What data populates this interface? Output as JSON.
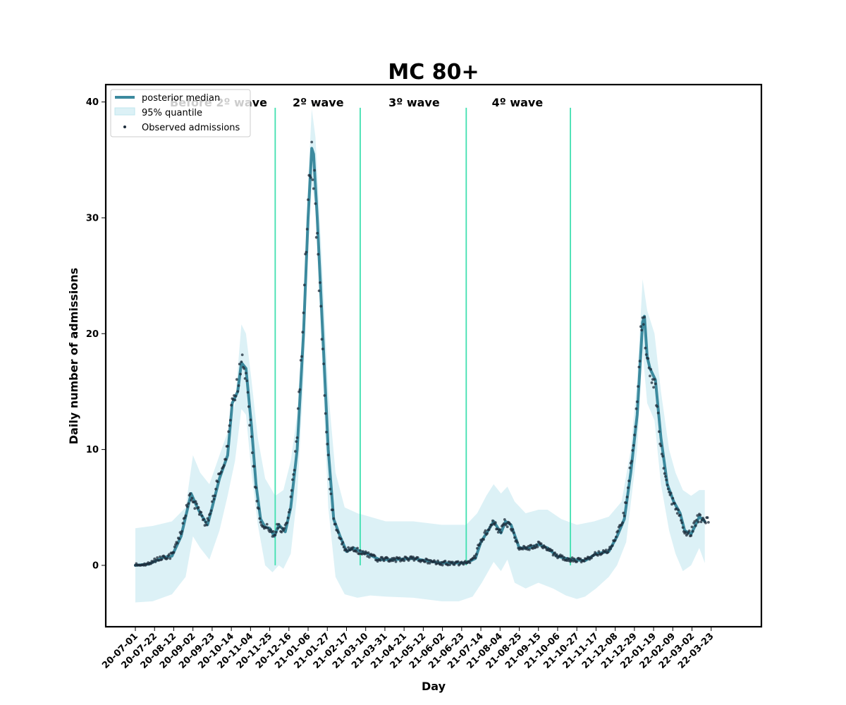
{
  "colors": {
    "median": "#3c8a9e",
    "band": "#bfe6ee",
    "observed": "#1c2b3a",
    "wave_line": "#40e0b0",
    "frame": "#000000"
  },
  "chart_data": {
    "type": "line",
    "title": "MC 80+",
    "xlabel": "Day",
    "ylabel": "Daily number of admissions",
    "x_tick_labels": [
      "20-07-01",
      "20-07-22",
      "20-08-12",
      "20-09-02",
      "20-09-23",
      "20-10-14",
      "20-11-04",
      "20-11-25",
      "20-12-16",
      "21-01-06",
      "21-01-27",
      "21-02-17",
      "21-03-10",
      "21-03-31",
      "21-04-21",
      "21-05-12",
      "21-06-02",
      "21-06-23",
      "21-07-14",
      "21-08-04",
      "21-08-25",
      "21-09-15",
      "21-10-06",
      "21-10-27",
      "21-11-17",
      "21-12-08",
      "21-12-29",
      "22-01-19",
      "22-02-09",
      "22-03-02",
      "22-03-23"
    ],
    "x_start": "2020-07-01",
    "x_end": "2022-04-13",
    "ylim": [
      -5.3,
      41.5
    ],
    "y_ticks": [
      0,
      10,
      20,
      30,
      40
    ],
    "legend": {
      "position": "top-left",
      "entries": [
        "posterior median",
        "95% quantile",
        "Observed admissions"
      ]
    },
    "wave_boundaries": [
      "2020-12-01",
      "2021-03-04",
      "2021-06-28",
      "2021-10-20"
    ],
    "wave_labels": [
      {
        "text": "Before 2º wave",
        "x": "2020-09-30"
      },
      {
        "text": "2º wave",
        "x": "2021-01-17"
      },
      {
        "text": "3º wave",
        "x": "2021-05-02"
      },
      {
        "text": "4º wave",
        "x": "2021-08-23"
      }
    ],
    "median_points": [
      [
        "2020-07-01",
        0.0
      ],
      [
        "2020-07-15",
        0.1
      ],
      [
        "2020-08-01",
        0.7
      ],
      [
        "2020-08-10",
        0.8
      ],
      [
        "2020-08-20",
        2.5
      ],
      [
        "2020-08-31",
        6.2
      ],
      [
        "2020-09-05",
        5.3
      ],
      [
        "2020-09-10",
        4.5
      ],
      [
        "2020-09-18",
        3.5
      ],
      [
        "2020-09-23",
        5.0
      ],
      [
        "2020-10-01",
        7.5
      ],
      [
        "2020-10-10",
        9.5
      ],
      [
        "2020-10-15",
        14.0
      ],
      [
        "2020-10-21",
        15.0
      ],
      [
        "2020-10-25",
        17.5
      ],
      [
        "2020-10-30",
        17.0
      ],
      [
        "2020-11-05",
        12.0
      ],
      [
        "2020-11-10",
        7.0
      ],
      [
        "2020-11-15",
        4.0
      ],
      [
        "2020-11-20",
        3.3
      ],
      [
        "2020-11-25",
        3.2
      ],
      [
        "2020-11-30",
        2.5
      ],
      [
        "2020-12-05",
        3.5
      ],
      [
        "2020-12-12",
        2.9
      ],
      [
        "2020-12-18",
        5.0
      ],
      [
        "2020-12-25",
        10.0
      ],
      [
        "2021-01-01",
        20.0
      ],
      [
        "2021-01-06",
        30.0
      ],
      [
        "2021-01-10",
        36.0
      ],
      [
        "2021-01-12",
        35.5
      ],
      [
        "2021-01-16",
        30.0
      ],
      [
        "2021-01-22",
        20.0
      ],
      [
        "2021-01-28",
        10.0
      ],
      [
        "2021-02-03",
        4.0
      ],
      [
        "2021-02-10",
        2.5
      ],
      [
        "2021-02-17",
        1.2
      ],
      [
        "2021-02-25",
        1.5
      ],
      [
        "2021-03-04",
        1.2
      ],
      [
        "2021-03-12",
        1.0
      ],
      [
        "2021-03-25",
        0.5
      ],
      [
        "2021-04-10",
        0.5
      ],
      [
        "2021-05-01",
        0.6
      ],
      [
        "2021-05-15",
        0.4
      ],
      [
        "2021-06-01",
        0.2
      ],
      [
        "2021-06-20",
        0.2
      ],
      [
        "2021-06-28",
        0.2
      ],
      [
        "2021-07-08",
        0.6
      ],
      [
        "2021-07-14",
        2.0
      ],
      [
        "2021-07-22",
        3.0
      ],
      [
        "2021-07-28",
        3.8
      ],
      [
        "2021-08-05",
        2.8
      ],
      [
        "2021-08-10",
        3.8
      ],
      [
        "2021-08-16",
        3.5
      ],
      [
        "2021-08-25",
        1.5
      ],
      [
        "2021-09-05",
        1.5
      ],
      [
        "2021-09-15",
        1.8
      ],
      [
        "2021-09-25",
        1.5
      ],
      [
        "2021-10-05",
        0.8
      ],
      [
        "2021-10-20",
        0.5
      ],
      [
        "2021-11-05",
        0.4
      ],
      [
        "2021-11-17",
        1.0
      ],
      [
        "2021-12-01",
        1.2
      ],
      [
        "2021-12-10",
        2.5
      ],
      [
        "2021-12-18",
        4.0
      ],
      [
        "2021-12-25",
        8.0
      ],
      [
        "2022-01-01",
        13.0
      ],
      [
        "2022-01-07",
        21.0
      ],
      [
        "2022-01-09",
        21.5
      ],
      [
        "2022-01-12",
        18.0
      ],
      [
        "2022-01-15",
        17.0
      ],
      [
        "2022-01-21",
        16.0
      ],
      [
        "2022-01-27",
        11.0
      ],
      [
        "2022-02-03",
        7.0
      ],
      [
        "2022-02-10",
        5.5
      ],
      [
        "2022-02-17",
        4.5
      ],
      [
        "2022-02-22",
        3.0
      ],
      [
        "2022-03-01",
        2.7
      ],
      [
        "2022-03-06",
        3.5
      ],
      [
        "2022-03-10",
        4.2
      ],
      [
        "2022-03-16",
        3.8
      ]
    ],
    "band_upper": [
      [
        "2020-07-01",
        3.2
      ],
      [
        "2020-07-20",
        3.4
      ],
      [
        "2020-08-10",
        3.8
      ],
      [
        "2020-08-25",
        5.0
      ],
      [
        "2020-09-02",
        9.5
      ],
      [
        "2020-09-10",
        8.0
      ],
      [
        "2020-09-20",
        7.0
      ],
      [
        "2020-10-01",
        9.5
      ],
      [
        "2020-10-10",
        11.5
      ],
      [
        "2020-10-18",
        14.0
      ],
      [
        "2020-10-25",
        20.8
      ],
      [
        "2020-10-30",
        20.0
      ],
      [
        "2020-11-05",
        16.0
      ],
      [
        "2020-11-12",
        11.0
      ],
      [
        "2020-11-20",
        7.5
      ],
      [
        "2020-12-01",
        6.0
      ],
      [
        "2020-12-10",
        6.5
      ],
      [
        "2020-12-18",
        9.0
      ],
      [
        "2020-12-25",
        13.0
      ],
      [
        "2021-01-01",
        22.0
      ],
      [
        "2021-01-06",
        33.0
      ],
      [
        "2021-01-10",
        39.4
      ],
      [
        "2021-01-14",
        37.0
      ],
      [
        "2021-01-20",
        28.0
      ],
      [
        "2021-01-28",
        15.0
      ],
      [
        "2021-02-05",
        8.0
      ],
      [
        "2021-02-15",
        5.0
      ],
      [
        "2021-03-01",
        4.5
      ],
      [
        "2021-03-10",
        4.3
      ],
      [
        "2021-04-01",
        3.8
      ],
      [
        "2021-05-01",
        3.8
      ],
      [
        "2021-06-01",
        3.5
      ],
      [
        "2021-06-28",
        3.5
      ],
      [
        "2021-07-10",
        4.5
      ],
      [
        "2021-07-20",
        6.0
      ],
      [
        "2021-07-28",
        7.0
      ],
      [
        "2021-08-05",
        6.2
      ],
      [
        "2021-08-12",
        6.8
      ],
      [
        "2021-08-20",
        5.5
      ],
      [
        "2021-09-01",
        4.5
      ],
      [
        "2021-09-15",
        4.8
      ],
      [
        "2021-09-25",
        4.8
      ],
      [
        "2021-10-10",
        4.0
      ],
      [
        "2021-10-27",
        3.5
      ],
      [
        "2021-11-15",
        3.8
      ],
      [
        "2021-12-01",
        4.2
      ],
      [
        "2021-12-15",
        5.5
      ],
      [
        "2021-12-25",
        10.0
      ],
      [
        "2022-01-01",
        16.0
      ],
      [
        "2022-01-07",
        24.7
      ],
      [
        "2022-01-12",
        22.0
      ],
      [
        "2022-01-20",
        20.0
      ],
      [
        "2022-01-27",
        15.0
      ],
      [
        "2022-02-05",
        10.0
      ],
      [
        "2022-02-12",
        8.0
      ],
      [
        "2022-02-20",
        6.5
      ],
      [
        "2022-03-01",
        6.0
      ],
      [
        "2022-03-10",
        6.5
      ],
      [
        "2022-03-16",
        6.5
      ]
    ],
    "band_lower": [
      [
        "2020-07-01",
        -3.2
      ],
      [
        "2020-07-20",
        -3.1
      ],
      [
        "2020-08-10",
        -2.5
      ],
      [
        "2020-08-25",
        -1.0
      ],
      [
        "2020-09-02",
        2.5
      ],
      [
        "2020-09-10",
        1.5
      ],
      [
        "2020-09-20",
        0.5
      ],
      [
        "2020-10-01",
        3.0
      ],
      [
        "2020-10-10",
        6.0
      ],
      [
        "2020-10-18",
        9.0
      ],
      [
        "2020-10-25",
        13.5
      ],
      [
        "2020-10-30",
        13.0
      ],
      [
        "2020-11-05",
        8.0
      ],
      [
        "2020-11-12",
        3.5
      ],
      [
        "2020-11-20",
        0.0
      ],
      [
        "2020-11-28",
        -0.6
      ],
      [
        "2020-12-05",
        0.0
      ],
      [
        "2020-12-10",
        -0.3
      ],
      [
        "2020-12-18",
        1.0
      ],
      [
        "2020-12-25",
        6.0
      ],
      [
        "2021-01-01",
        16.0
      ],
      [
        "2021-01-06",
        27.0
      ],
      [
        "2021-01-10",
        32.8
      ],
      [
        "2021-01-14",
        31.0
      ],
      [
        "2021-01-20",
        20.0
      ],
      [
        "2021-01-28",
        5.0
      ],
      [
        "2021-02-05",
        -1.0
      ],
      [
        "2021-02-15",
        -2.5
      ],
      [
        "2021-03-01",
        -2.8
      ],
      [
        "2021-03-15",
        -2.6
      ],
      [
        "2021-04-01",
        -2.7
      ],
      [
        "2021-05-01",
        -2.8
      ],
      [
        "2021-06-01",
        -3.1
      ],
      [
        "2021-06-20",
        -3.1
      ],
      [
        "2021-07-05",
        -2.7
      ],
      [
        "2021-07-15",
        -1.5
      ],
      [
        "2021-07-28",
        0.3
      ],
      [
        "2021-08-05",
        -0.5
      ],
      [
        "2021-08-12",
        0.5
      ],
      [
        "2021-08-20",
        -1.5
      ],
      [
        "2021-09-01",
        -2.0
      ],
      [
        "2021-09-15",
        -1.5
      ],
      [
        "2021-10-01",
        -2.0
      ],
      [
        "2021-10-15",
        -2.6
      ],
      [
        "2021-10-27",
        -2.9
      ],
      [
        "2021-11-05",
        -2.7
      ],
      [
        "2021-11-17",
        -2.0
      ],
      [
        "2021-12-01",
        -1.0
      ],
      [
        "2021-12-10",
        0.0
      ],
      [
        "2021-12-20",
        2.0
      ],
      [
        "2022-01-01",
        10.0
      ],
      [
        "2022-01-07",
        18.5
      ],
      [
        "2022-01-12",
        14.0
      ],
      [
        "2022-01-20",
        12.5
      ],
      [
        "2022-01-27",
        7.0
      ],
      [
        "2022-02-05",
        3.0
      ],
      [
        "2022-02-12",
        1.0
      ],
      [
        "2022-02-20",
        -0.5
      ],
      [
        "2022-03-01",
        0.0
      ],
      [
        "2022-03-10",
        1.5
      ],
      [
        "2022-03-16",
        0.2
      ]
    ]
  }
}
